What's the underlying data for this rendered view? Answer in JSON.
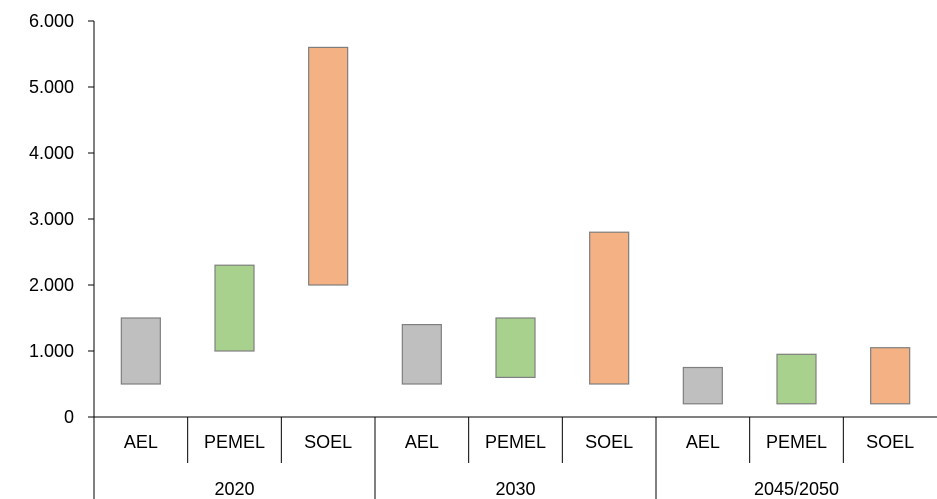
{
  "chart_data": {
    "type": "bar",
    "subtype": "floating-range",
    "title": "",
    "xlabel": "",
    "ylabel": "",
    "ylim": [
      0,
      6000
    ],
    "yticks": [
      0,
      1000,
      2000,
      3000,
      4000,
      5000,
      6000
    ],
    "ytick_labels": [
      "0",
      "1.000",
      "2.000",
      "3.000",
      "4.000",
      "5.000",
      "6.000"
    ],
    "grid": false,
    "legend": "none",
    "groups": [
      {
        "label": "2020",
        "bars": [
          {
            "category": "AEL",
            "low": 500,
            "high": 1500,
            "color": "#bfbfbf"
          },
          {
            "category": "PEMEL",
            "low": 1000,
            "high": 2300,
            "color": "#a9d18e"
          },
          {
            "category": "SOEL",
            "low": 2000,
            "high": 5600,
            "color": "#f4b183"
          }
        ]
      },
      {
        "label": "2030",
        "bars": [
          {
            "category": "AEL",
            "low": 500,
            "high": 1400,
            "color": "#bfbfbf"
          },
          {
            "category": "PEMEL",
            "low": 600,
            "high": 1500,
            "color": "#a9d18e"
          },
          {
            "category": "SOEL",
            "low": 500,
            "high": 2800,
            "color": "#f4b183"
          }
        ]
      },
      {
        "label": "2045/2050",
        "bars": [
          {
            "category": "AEL",
            "low": 200,
            "high": 750,
            "color": "#bfbfbf"
          },
          {
            "category": "PEMEL",
            "low": 200,
            "high": 950,
            "color": "#a9d18e"
          },
          {
            "category": "SOEL",
            "low": 200,
            "high": 1050,
            "color": "#f4b183"
          }
        ]
      }
    ]
  }
}
